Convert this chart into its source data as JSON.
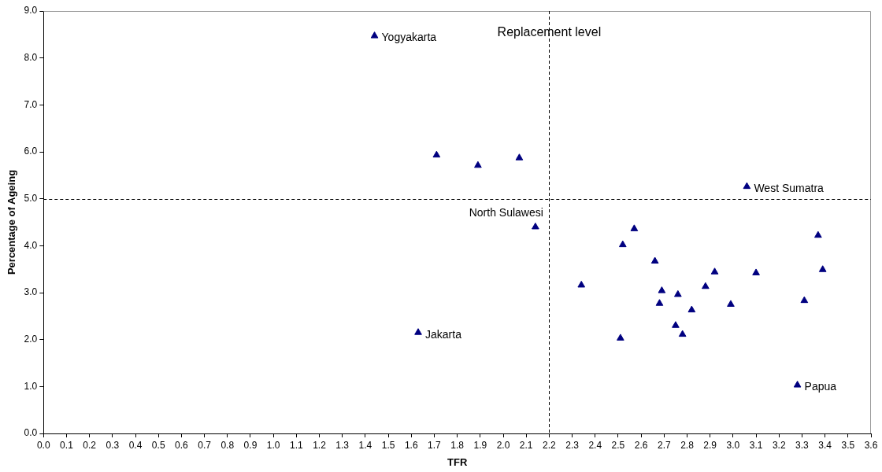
{
  "chart_data": {
    "type": "scatter",
    "xlabel": "TFR",
    "ylabel": "Percentage of Ageing",
    "marker": "triangle",
    "grid": false,
    "legend": false,
    "x": [
      1.44,
      1.71,
      1.89,
      2.07,
      2.14,
      1.63,
      3.06,
      2.57,
      2.52,
      2.66,
      2.34,
      2.69,
      2.76,
      2.68,
      2.82,
      2.75,
      2.78,
      2.51,
      2.88,
      2.92,
      2.99,
      3.1,
      3.31,
      3.37,
      3.39,
      3.28
    ],
    "series": [
      {
        "color": "#000080",
        "values": [
          8.47,
          5.93,
          5.71,
          5.87,
          4.4,
          2.15,
          5.26,
          4.36,
          4.02,
          3.67,
          3.16,
          3.04,
          2.96,
          2.77,
          2.63,
          2.3,
          2.11,
          2.03,
          3.13,
          3.44,
          2.75,
          3.42,
          2.83,
          4.22,
          3.49,
          1.03
        ]
      }
    ],
    "xlim": [
      0,
      3.6
    ],
    "xticks": [
      {
        "value": 0,
        "label": "0.0"
      },
      {
        "value": 0.1,
        "label": "0.1"
      },
      {
        "value": 0.2,
        "label": "0.2"
      },
      {
        "value": 0.3,
        "label": "0.3"
      },
      {
        "value": 0.4,
        "label": "0.4"
      },
      {
        "value": 0.5,
        "label": "0.5"
      },
      {
        "value": 0.6,
        "label": "0.6"
      },
      {
        "value": 0.7,
        "label": "0.7"
      },
      {
        "value": 0.8,
        "label": "0.8"
      },
      {
        "value": 0.9,
        "label": "0.9"
      },
      {
        "value": 1,
        "label": "1.0"
      },
      {
        "value": 1.1,
        "label": "1.1"
      },
      {
        "value": 1.2,
        "label": "1.2"
      },
      {
        "value": 1.3,
        "label": "1.3"
      },
      {
        "value": 1.4,
        "label": "1.4"
      },
      {
        "value": 1.5,
        "label": "1.5"
      },
      {
        "value": 1.6,
        "label": "1.6"
      },
      {
        "value": 1.7,
        "label": "1.7"
      },
      {
        "value": 1.8,
        "label": "1.8"
      },
      {
        "value": 1.9,
        "label": "1.9"
      },
      {
        "value": 2,
        "label": "2.0"
      },
      {
        "value": 2.1,
        "label": "2.1"
      },
      {
        "value": 2.2,
        "label": "2.2"
      },
      {
        "value": 2.3,
        "label": "2.3"
      },
      {
        "value": 2.4,
        "label": "2.4"
      },
      {
        "value": 2.5,
        "label": "2.5"
      },
      {
        "value": 2.6,
        "label": "2.6"
      },
      {
        "value": 2.7,
        "label": "2.7"
      },
      {
        "value": 2.8,
        "label": "2.8"
      },
      {
        "value": 2.9,
        "label": "2.9"
      },
      {
        "value": 3,
        "label": "3.0"
      },
      {
        "value": 3.1,
        "label": "3.1"
      },
      {
        "value": 3.2,
        "label": "3.2"
      },
      {
        "value": 3.3,
        "label": "3.3"
      },
      {
        "value": 3.4,
        "label": "3.4"
      },
      {
        "value": 3.5,
        "label": "3.5"
      },
      {
        "value": 3.6,
        "label": "3.6"
      }
    ],
    "ylim": [
      0,
      9
    ],
    "yticks": [
      {
        "value": 0,
        "label": "0.0"
      },
      {
        "value": 1,
        "label": "1.0"
      },
      {
        "value": 2,
        "label": "2.0"
      },
      {
        "value": 3,
        "label": "3.0"
      },
      {
        "value": 4,
        "label": "4.0"
      },
      {
        "value": 5,
        "label": "5.0"
      },
      {
        "value": 6,
        "label": "6.0"
      },
      {
        "value": 7,
        "label": "7.0"
      },
      {
        "value": 8,
        "label": "8.0"
      },
      {
        "value": 9,
        "label": "9.0"
      }
    ],
    "ref_lines": [
      {
        "axis": "x",
        "value": 2.2,
        "label": "Replacement level",
        "line_style": "dashed"
      },
      {
        "axis": "y",
        "value": 5,
        "line_style": "dashed"
      }
    ],
    "annotations": [
      {
        "text": "Yogyakarta",
        "x": 1.44,
        "y": 8.47
      },
      {
        "text": "North Sulawesi",
        "x": 2.14,
        "y": 4.4
      },
      {
        "text": "Jakarta",
        "x": 1.63,
        "y": 2.15
      },
      {
        "text": "West Sumatra",
        "x": 3.06,
        "y": 5.26
      },
      {
        "text": "Papua",
        "x": 3.28,
        "y": 1.03
      }
    ]
  }
}
